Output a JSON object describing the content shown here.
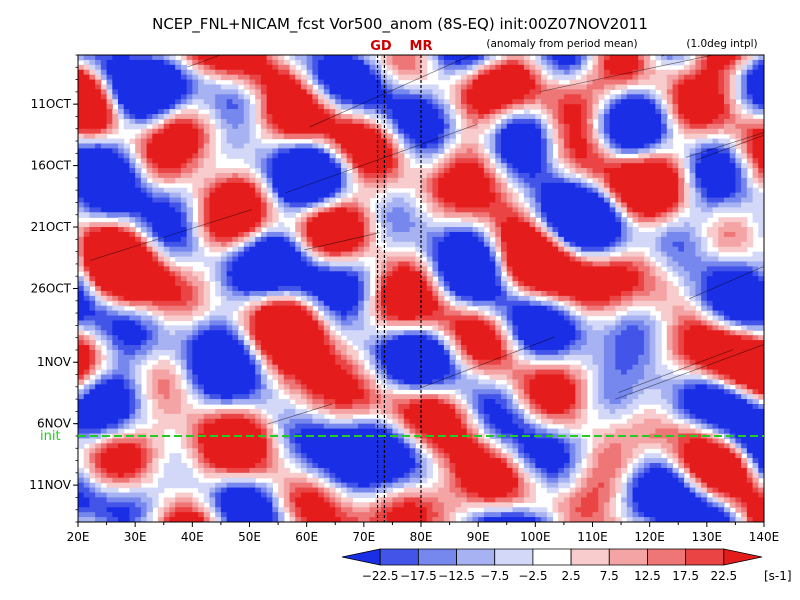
{
  "chart_data": {
    "type": "heatmap",
    "title": "NCEP_FNL+NICAM_fcst Vor500_anom (8S-EQ) init:00Z07NOV2011",
    "subtitle": "(anomaly from period mean)",
    "note": "(1.0deg intpl)",
    "xlim": [
      20,
      140
    ],
    "x_ticks": [
      {
        "value": 20,
        "label": "20E"
      },
      {
        "value": 30,
        "label": "30E"
      },
      {
        "value": 40,
        "label": "40E"
      },
      {
        "value": 50,
        "label": "50E"
      },
      {
        "value": 60,
        "label": "60E"
      },
      {
        "value": 70,
        "label": "70E"
      },
      {
        "value": 80,
        "label": "80E"
      },
      {
        "value": 90,
        "label": "90E"
      },
      {
        "value": 100,
        "label": "100E"
      },
      {
        "value": 110,
        "label": "110E"
      },
      {
        "value": 120,
        "label": "120E"
      },
      {
        "value": 130,
        "label": "130E"
      },
      {
        "value": 140,
        "label": "140E"
      }
    ],
    "ylim": [
      "2011-10-07",
      "2011-11-14"
    ],
    "y_reversed": true,
    "y_ticks": [
      {
        "value": "2011-10-11",
        "label": "11OCT"
      },
      {
        "value": "2011-10-16",
        "label": "16OCT"
      },
      {
        "value": "2011-10-21",
        "label": "21OCT"
      },
      {
        "value": "2011-10-26",
        "label": "26OCT"
      },
      {
        "value": "2011-11-01",
        "label": "1NOV"
      },
      {
        "value": "2011-11-06",
        "label": "6NOV"
      },
      {
        "value": "2011-11-11",
        "label": "11NOV"
      }
    ],
    "init_line": {
      "date": "2011-11-07",
      "label": "init",
      "color": "#22cc22"
    },
    "reference_lines": [
      {
        "lon_range": [
          72.4,
          73.6
        ],
        "label": "GD",
        "color": "#cc0000"
      },
      {
        "lon": 80.0,
        "label": "MR",
        "color": "#cc0000"
      }
    ],
    "colorbar": {
      "unit": "[s-1]",
      "levels": [
        -22.5,
        -17.5,
        -12.5,
        -7.5,
        -2.5,
        2.5,
        7.5,
        12.5,
        17.5,
        22.5
      ],
      "level_labels": [
        "−22.5",
        "−17.5",
        "−12.5",
        "−7.5",
        "−2.5",
        "2.5",
        "7.5",
        "12.5",
        "17.5",
        "22.5"
      ],
      "colors": [
        "#1a2ee6",
        "#4255e8",
        "#7687ee",
        "#a7b2f2",
        "#d3d8f8",
        "#ffffff",
        "#f8cccc",
        "#f4a4a4",
        "#ef7676",
        "#ea4444",
        "#e51c1c"
      ]
    }
  }
}
